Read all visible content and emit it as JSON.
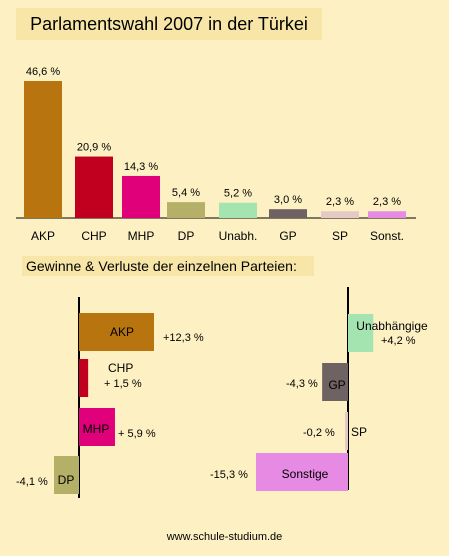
{
  "title": "Parlamentswahl 2007 in der Türkei",
  "subtitle": "Gewinne & Verluste der einzelnen Parteien:",
  "footer": "www.schule-studium.de",
  "chart_data": [
    {
      "type": "bar",
      "categories": [
        "AKP",
        "CHP",
        "MHP",
        "DP",
        "Unabh.",
        "GP",
        "SP",
        "Sonst."
      ],
      "values": [
        46.6,
        20.9,
        14.3,
        5.4,
        5.2,
        3.0,
        2.3,
        2.3
      ],
      "value_labels": [
        "46,6 %",
        "20,9 %",
        "14,3 %",
        "5,4 %",
        "5,2 %",
        "3,0 %",
        "2,3 %",
        "2,3 %"
      ],
      "colors": [
        "#b8740e",
        "#c0001e",
        "#e0007a",
        "#b5b067",
        "#a4e4b0",
        "#6e6262",
        "#e4c9c4",
        "#e68ae4"
      ]
    },
    {
      "type": "bar",
      "orientation": "horizontal",
      "categories": [
        "AKP",
        "CHP",
        "MHP",
        "DP"
      ],
      "values": [
        12.3,
        1.5,
        5.9,
        -4.1
      ],
      "value_labels": [
        "+12,3 %",
        "+ 1,5 %",
        "+ 5,9 %",
        "-4,1 %"
      ],
      "colors": [
        "#b8740e",
        "#c0001e",
        "#e0007a",
        "#b5b067"
      ]
    },
    {
      "type": "bar",
      "orientation": "horizontal",
      "categories": [
        "Unabhängige",
        "GP",
        "SP",
        "Sonstige"
      ],
      "values": [
        4.2,
        -4.3,
        -0.2,
        -15.3
      ],
      "value_labels": [
        "+4,2 %",
        "-4,3 %",
        "-0,2 %",
        "-15,3 %"
      ],
      "colors": [
        "#a4e4b0",
        "#6e6262",
        "#e4c9c4",
        "#e68ae4"
      ]
    }
  ]
}
